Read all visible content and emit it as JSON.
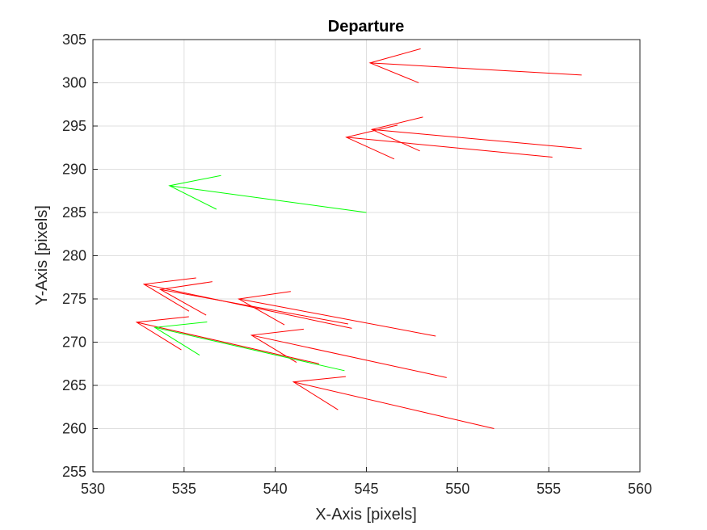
{
  "chart_data": {
    "type": "quiver",
    "title": "Departure",
    "xlabel": "X-Axis [pixels]",
    "ylabel": "Y-Axis [pixels]",
    "xlim": [
      530,
      560
    ],
    "ylim": [
      255,
      305
    ],
    "xticks": [
      "530",
      "535",
      "540",
      "545",
      "550",
      "555",
      "560"
    ],
    "yticks": [
      "255",
      "260",
      "265",
      "270",
      "275",
      "280",
      "285",
      "290",
      "295",
      "300",
      "305"
    ],
    "grid": true,
    "colors": {
      "red": "#ff0000",
      "green": "#00ff00",
      "grid": "#dfdfdf",
      "axis": "#262626"
    },
    "vectors": [
      {
        "x0": 556.8,
        "y0": 300.9,
        "x1": 545.2,
        "y1": 302.3,
        "color": "red"
      },
      {
        "x0": 556.8,
        "y0": 292.4,
        "x1": 545.3,
        "y1": 294.6,
        "color": "red"
      },
      {
        "x0": 555.2,
        "y0": 291.4,
        "x1": 543.9,
        "y1": 293.7,
        "color": "red"
      },
      {
        "x0": 545.0,
        "y0": 285.0,
        "x1": 534.2,
        "y1": 288.1,
        "color": "green"
      },
      {
        "x0": 548.8,
        "y0": 270.7,
        "x1": 538.0,
        "y1": 275.0,
        "color": "red"
      },
      {
        "x0": 544.2,
        "y0": 271.6,
        "x1": 532.8,
        "y1": 276.7,
        "color": "red"
      },
      {
        "x0": 544.0,
        "y0": 272.1,
        "x1": 533.7,
        "y1": 276.1,
        "color": "red"
      },
      {
        "x0": 549.4,
        "y0": 265.9,
        "x1": 538.7,
        "y1": 270.8,
        "color": "red"
      },
      {
        "x0": 542.4,
        "y0": 267.5,
        "x1": 532.4,
        "y1": 272.3,
        "color": "red"
      },
      {
        "x0": 543.8,
        "y0": 266.7,
        "x1": 533.4,
        "y1": 271.7,
        "color": "green"
      },
      {
        "x0": 552.0,
        "y0": 260.0,
        "x1": 541.0,
        "y1": 265.4,
        "color": "red"
      }
    ]
  }
}
